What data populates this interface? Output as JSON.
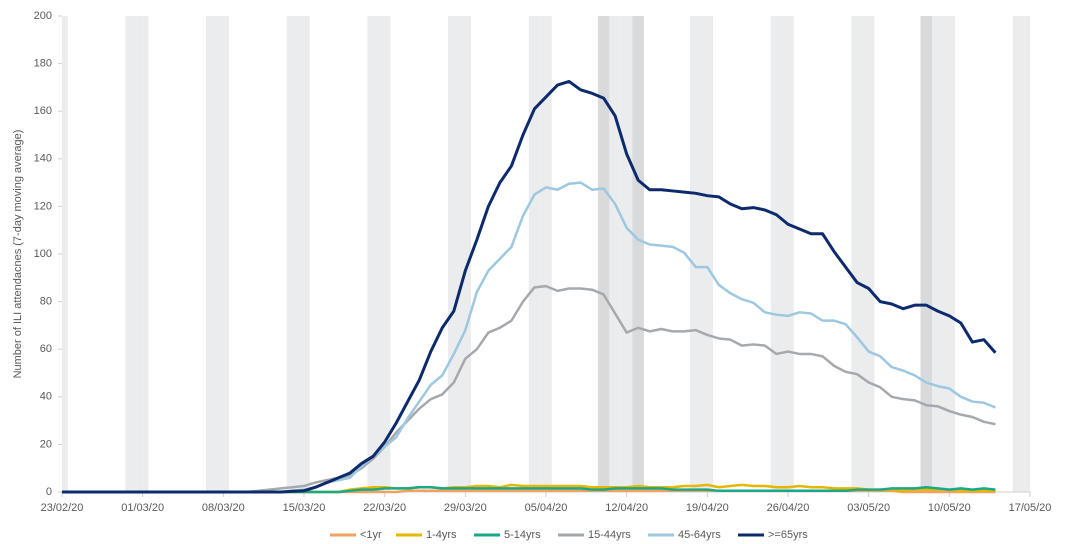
{
  "chart_data": {
    "type": "line",
    "y_label": "Number of ILI attendacnes (7-day moving average)",
    "x": [
      "23/02/20",
      "24/02/20",
      "25/02/20",
      "26/02/20",
      "27/02/20",
      "28/02/20",
      "29/02/20",
      "01/03/20",
      "02/03/20",
      "03/03/20",
      "04/03/20",
      "05/03/20",
      "06/03/20",
      "07/03/20",
      "08/03/20",
      "09/03/20",
      "10/03/20",
      "11/03/20",
      "12/03/20",
      "13/03/20",
      "14/03/20",
      "15/03/20",
      "16/03/20",
      "17/03/20",
      "18/03/20",
      "19/03/20",
      "20/03/20",
      "21/03/20",
      "22/03/20",
      "23/03/20",
      "24/03/20",
      "25/03/20",
      "26/03/20",
      "27/03/20",
      "28/03/20",
      "29/03/20",
      "30/03/20",
      "31/03/20",
      "01/04/20",
      "02/04/20",
      "03/04/20",
      "04/04/20",
      "05/04/20",
      "06/04/20",
      "07/04/20",
      "08/04/20",
      "09/04/20",
      "10/04/20",
      "11/04/20",
      "12/04/20",
      "13/04/20",
      "14/04/20",
      "15/04/20",
      "16/04/20",
      "17/04/20",
      "18/04/20",
      "19/04/20",
      "20/04/20",
      "21/04/20",
      "22/04/20",
      "23/04/20",
      "24/04/20",
      "25/04/20",
      "26/04/20",
      "27/04/20",
      "28/04/20",
      "29/04/20",
      "30/04/20",
      "01/05/20",
      "02/05/20",
      "03/05/20",
      "04/05/20",
      "05/05/20",
      "06/05/20",
      "07/05/20",
      "08/05/20",
      "09/05/20",
      "10/05/20",
      "11/05/20",
      "12/05/20",
      "13/05/20",
      "14/05/20"
    ],
    "xlim": [
      "23/02/20",
      "17/05/20"
    ],
    "xticks": [
      "23/02/20",
      "01/03/20",
      "08/03/20",
      "15/03/20",
      "22/03/20",
      "29/03/20",
      "05/04/20",
      "12/04/20",
      "19/04/20",
      "26/04/20",
      "03/05/20",
      "10/05/20",
      "17/05/20"
    ],
    "ylim": [
      0,
      200
    ],
    "yticks": [
      0,
      20,
      40,
      60,
      80,
      100,
      120,
      140,
      160,
      180,
      200
    ],
    "shade_weekends": true,
    "holidays": [
      "10/04/20",
      "13/04/20",
      "08/05/20"
    ],
    "legend": "bottom",
    "series": [
      {
        "name": "<1yr",
        "color": "#f4a15d",
        "values": [
          0,
          0,
          0,
          0,
          0,
          0,
          0,
          0,
          0,
          0,
          0,
          0,
          0,
          0,
          0,
          0,
          0,
          0,
          0,
          0,
          0,
          0,
          0,
          0,
          0,
          0,
          0,
          0,
          0,
          0,
          0.5,
          0.5,
          0.5,
          0.5,
          0.5,
          0.5,
          0.5,
          0.5,
          0.5,
          0.5,
          0.5,
          0.5,
          0.5,
          0.5,
          0.5,
          0.5,
          0.5,
          0.5,
          0.5,
          0.5,
          0.5,
          0.5,
          0.5,
          0.5,
          0.5,
          0.5,
          0.5,
          0.5,
          0.5,
          0.5,
          0.5,
          0.5,
          0.5,
          0.5,
          0.5,
          0.5,
          0.5,
          0.5,
          0.5,
          0.5,
          0.5,
          0.5,
          0.5,
          0,
          0,
          0,
          0,
          0,
          0,
          0,
          0,
          0
        ]
      },
      {
        "name": "1-4yrs",
        "color": "#e8b600",
        "values": [
          0,
          0,
          0,
          0,
          0,
          0,
          0,
          0,
          0,
          0,
          0,
          0,
          0,
          0,
          0,
          0,
          0,
          0,
          0,
          0,
          0,
          0,
          0,
          0,
          0,
          1,
          1.5,
          2,
          2,
          1.5,
          1.5,
          2,
          2,
          1.5,
          2,
          2,
          2.5,
          2.5,
          2,
          3,
          2.5,
          2.5,
          2.5,
          2.5,
          2.5,
          2.5,
          2,
          2,
          2,
          2,
          2.5,
          2,
          2,
          2,
          2.5,
          2.5,
          3,
          2,
          2.5,
          3,
          2.5,
          2.5,
          2,
          2,
          2.5,
          2,
          2,
          1.5,
          1.5,
          1.5,
          1,
          1,
          1,
          0.5,
          1,
          1,
          1,
          1,
          0.5,
          0.5,
          0.5,
          0.5
        ]
      },
      {
        "name": "5-14yrs",
        "color": "#17a98a",
        "values": [
          0,
          0,
          0,
          0,
          0,
          0,
          0,
          0,
          0,
          0,
          0,
          0,
          0,
          0,
          0,
          0,
          0,
          0,
          0,
          0,
          0,
          0,
          0,
          0,
          0,
          0.5,
          1,
          1,
          1.5,
          1.5,
          1.5,
          2,
          2,
          1.5,
          1.5,
          1.5,
          1.5,
          1.5,
          1.5,
          1.5,
          1.5,
          1.5,
          1.5,
          1.5,
          1.5,
          1.5,
          1,
          1,
          1.5,
          1.5,
          1.5,
          1.5,
          1.5,
          1,
          1,
          1,
          1,
          0.5,
          0.5,
          0.5,
          0.5,
          0.5,
          0.5,
          0.5,
          0.5,
          0.5,
          0.5,
          0.5,
          0.5,
          1,
          1,
          1,
          1.5,
          1.5,
          1.5,
          2,
          1.5,
          1,
          1.5,
          1,
          1.5,
          1
        ]
      },
      {
        "name": "15-44yrs",
        "color": "#a5a9ae",
        "values": [
          0,
          0,
          0,
          0,
          0,
          0,
          0,
          0,
          0,
          0,
          0,
          0,
          0,
          0,
          0,
          0,
          0,
          0.5,
          1,
          1.5,
          2,
          2.5,
          4,
          5,
          6,
          7,
          10,
          14,
          19,
          25,
          30,
          35,
          39,
          41,
          46,
          56,
          60,
          67,
          69,
          72,
          80,
          86,
          86.5,
          84.5,
          85.5,
          85.5,
          85,
          83,
          75,
          67,
          69,
          67.5,
          68.5,
          67.5,
          67.5,
          68,
          66,
          64.5,
          64,
          61.5,
          62,
          61.5,
          58,
          59,
          58,
          58,
          57,
          53,
          50.5,
          49.5,
          46,
          44,
          40,
          39,
          38.5,
          36.5,
          36,
          34,
          32.5,
          31.5,
          29.5,
          28.5
        ]
      },
      {
        "name": "45-64yrs",
        "color": "#9dc8e0",
        "values": [
          0,
          0,
          0,
          0,
          0,
          0,
          0,
          0,
          0,
          0,
          0,
          0,
          0,
          0,
          0,
          0,
          0,
          0,
          0,
          0,
          0.5,
          1,
          2,
          4,
          5,
          6,
          11,
          15,
          19,
          23,
          31,
          38,
          45,
          49,
          58,
          68,
          84,
          93,
          98,
          103,
          116,
          125,
          128,
          127,
          129.5,
          130,
          127,
          127.5,
          121,
          111,
          106,
          104,
          103.5,
          103,
          100.5,
          94.5,
          94.5,
          87,
          83.5,
          81,
          79.5,
          75.5,
          74.5,
          74,
          75.5,
          75,
          72,
          72,
          70.5,
          65,
          59,
          57,
          52.5,
          51,
          49,
          46,
          44.5,
          43.5,
          40,
          38,
          37.5,
          35.5
        ]
      },
      {
        "name": ">=65yrs",
        "color": "#0c2a6c",
        "values": [
          0,
          0,
          0,
          0,
          0,
          0,
          0,
          0,
          0,
          0,
          0,
          0,
          0,
          0,
          0,
          0,
          0,
          0,
          0,
          0,
          0.3,
          0.5,
          2,
          4,
          6,
          8,
          12,
          15,
          21,
          29,
          38,
          47,
          59,
          69,
          76,
          93,
          106,
          120,
          130,
          137,
          150,
          161,
          166,
          171,
          172.5,
          169,
          167.5,
          165.5,
          158,
          142,
          131,
          127,
          127,
          126.5,
          126,
          125.5,
          124.5,
          124,
          121,
          119,
          119.5,
          118.5,
          116.5,
          112.5,
          110.5,
          108.5,
          108.5,
          101,
          94.5,
          88,
          85.5,
          80,
          79,
          77,
          78.5,
          78.5,
          76,
          74,
          71,
          63,
          64,
          58.5
        ]
      }
    ]
  }
}
